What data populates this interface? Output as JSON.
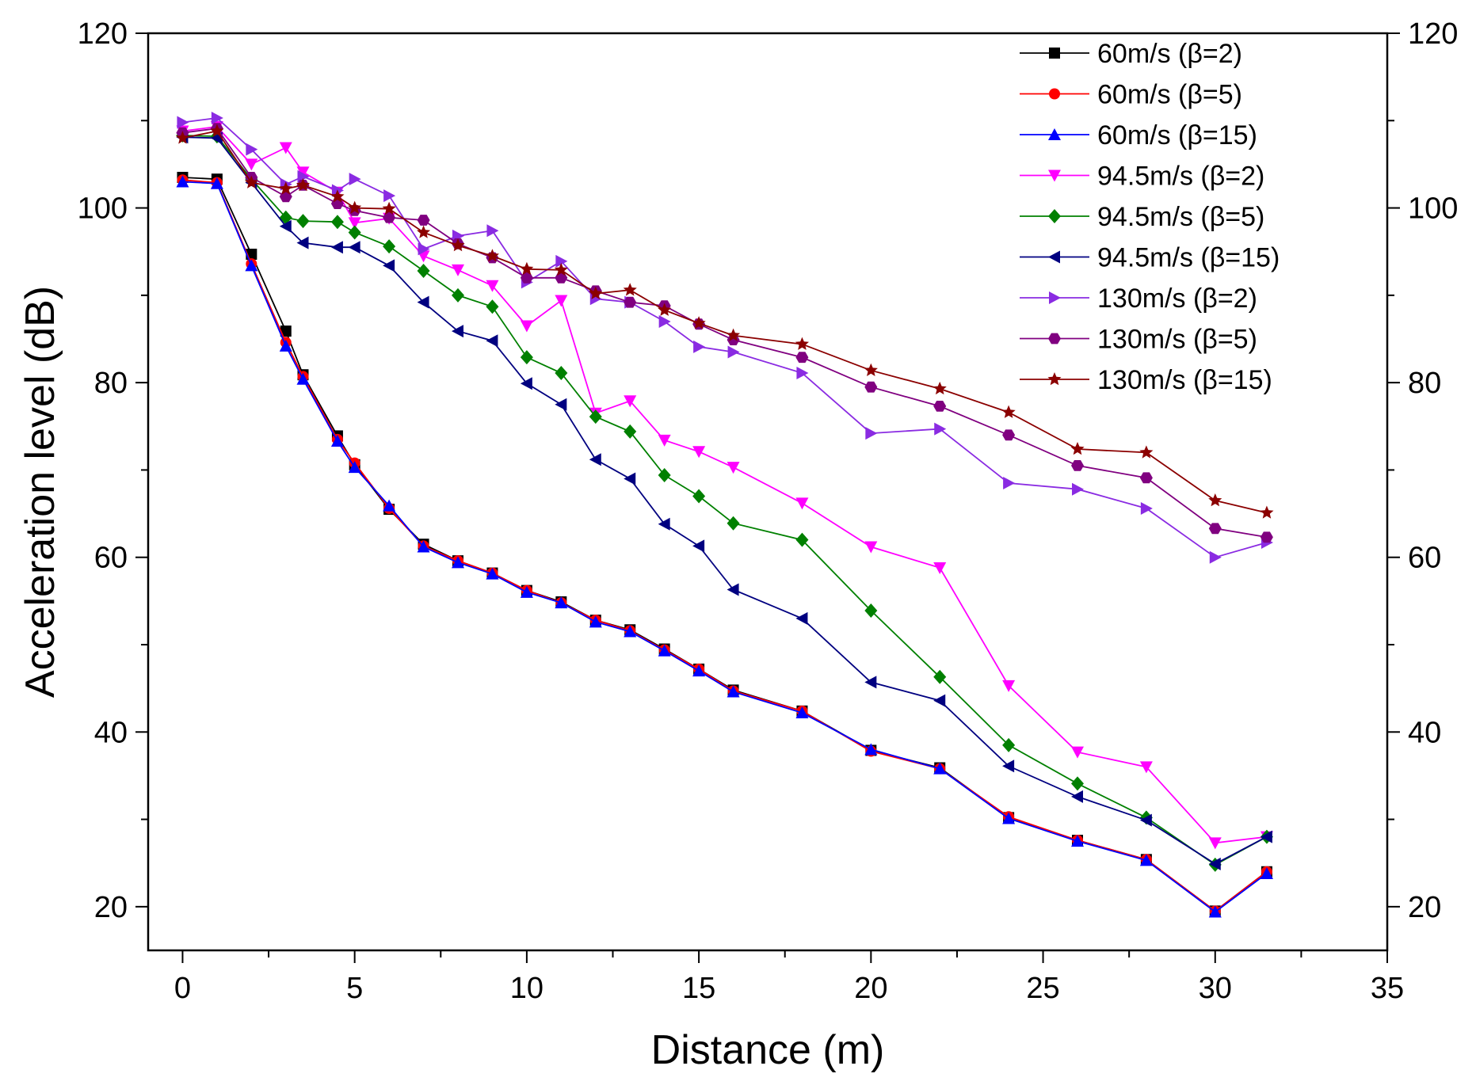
{
  "chart_data": {
    "type": "line",
    "xlabel": "Distance (m)",
    "ylabel": "Acceleration level (dB)",
    "xlim": [
      -1,
      35
    ],
    "ylim": [
      15,
      120
    ],
    "xticks": [
      0,
      5,
      10,
      15,
      20,
      25,
      30,
      35
    ],
    "yticks": [
      20,
      40,
      60,
      80,
      100,
      120
    ],
    "x": [
      0,
      1,
      2,
      3,
      3.5,
      4.5,
      5,
      6,
      7,
      8,
      9,
      10,
      11,
      12,
      13,
      14,
      15,
      16,
      18,
      20,
      22,
      24,
      26,
      28,
      30,
      31.5
    ],
    "legend_position": "top-right",
    "series": [
      {
        "name": "60m/s (β=2)",
        "color": "#000000",
        "marker": "square",
        "values": [
          103.5,
          103.3,
          94.7,
          85.9,
          80.9,
          73.9,
          70.6,
          65.5,
          61.5,
          59.6,
          58.2,
          56.2,
          54.9,
          52.8,
          51.7,
          49.5,
          47.2,
          44.8,
          42.4,
          37.9,
          35.9,
          30.2,
          27.6,
          25.4,
          19.5,
          24.0
        ]
      },
      {
        "name": "60m/s (β=5)",
        "color": "#ff0000",
        "marker": "circle",
        "values": [
          103.2,
          102.9,
          93.6,
          84.6,
          80.7,
          73.5,
          70.8,
          65.6,
          61.3,
          59.6,
          58.2,
          56.2,
          54.8,
          52.8,
          51.6,
          49.4,
          47.2,
          44.7,
          42.4,
          37.8,
          35.8,
          30.3,
          27.6,
          25.4,
          19.5,
          24.0
        ]
      },
      {
        "name": "60m/s (β=15)",
        "color": "#0000ff",
        "marker": "triangle-up",
        "values": [
          103.0,
          102.8,
          93.4,
          84.2,
          80.4,
          73.3,
          70.3,
          65.9,
          61.2,
          59.4,
          58.1,
          56.0,
          54.8,
          52.6,
          51.5,
          49.3,
          47.0,
          44.6,
          42.2,
          38.0,
          35.8,
          30.1,
          27.5,
          25.3,
          19.4,
          23.8
        ]
      },
      {
        "name": "94.5m/s (β=2)",
        "color": "#ff00ff",
        "marker": "triangle-down",
        "values": [
          108.8,
          109.3,
          105.0,
          106.9,
          104.1,
          101.8,
          98.3,
          98.8,
          94.5,
          92.9,
          91.1,
          86.5,
          89.4,
          76.5,
          77.9,
          73.4,
          72.1,
          70.3,
          66.2,
          61.2,
          58.8,
          45.3,
          37.7,
          36.0,
          27.3,
          28.0
        ]
      },
      {
        "name": "94.5m/s (β=5)",
        "color": "#008000",
        "marker": "diamond",
        "values": [
          108.3,
          108.2,
          103.3,
          98.9,
          98.5,
          98.4,
          97.2,
          95.6,
          92.8,
          90.0,
          88.7,
          82.9,
          81.1,
          76.1,
          74.4,
          69.4,
          67.0,
          63.9,
          62.0,
          53.9,
          46.3,
          38.5,
          34.1,
          30.2,
          24.8,
          28.0
        ]
      },
      {
        "name": "94.5m/s (β=15)",
        "color": "#000080",
        "marker": "triangle-left",
        "values": [
          108.1,
          108.0,
          102.9,
          97.9,
          96.0,
          95.5,
          95.5,
          93.4,
          89.2,
          85.9,
          84.8,
          79.9,
          77.5,
          71.2,
          69.0,
          63.8,
          61.3,
          56.3,
          53.0,
          45.7,
          43.6,
          36.1,
          32.6,
          29.9,
          24.9,
          28.0
        ]
      },
      {
        "name": "130m/s (β=2)",
        "color": "#8a2be2",
        "marker": "triangle-right",
        "values": [
          109.8,
          110.3,
          106.7,
          102.7,
          103.6,
          102.0,
          103.3,
          101.4,
          95.3,
          96.8,
          97.4,
          91.5,
          93.9,
          89.6,
          89.2,
          87.0,
          84.1,
          83.5,
          81.1,
          74.2,
          74.7,
          68.5,
          67.8,
          65.6,
          60.0,
          61.7
        ]
      },
      {
        "name": "130m/s (β=5)",
        "color": "#800080",
        "marker": "hexagon",
        "values": [
          108.6,
          109.1,
          103.5,
          101.3,
          102.6,
          100.5,
          99.7,
          98.9,
          98.6,
          95.9,
          94.3,
          92.0,
          92.0,
          90.5,
          89.2,
          88.8,
          86.7,
          84.9,
          82.9,
          79.5,
          77.3,
          74.0,
          70.5,
          69.1,
          63.3,
          62.3
        ]
      },
      {
        "name": "130m/s (β=15)",
        "color": "#8b0000",
        "marker": "star",
        "values": [
          108.0,
          108.8,
          102.9,
          102.2,
          102.6,
          101.3,
          100.0,
          99.9,
          97.2,
          95.7,
          94.5,
          93.0,
          92.9,
          90.2,
          90.6,
          88.3,
          86.8,
          85.4,
          84.4,
          81.4,
          79.3,
          76.6,
          72.4,
          72.0,
          66.5,
          65.1
        ]
      }
    ]
  }
}
